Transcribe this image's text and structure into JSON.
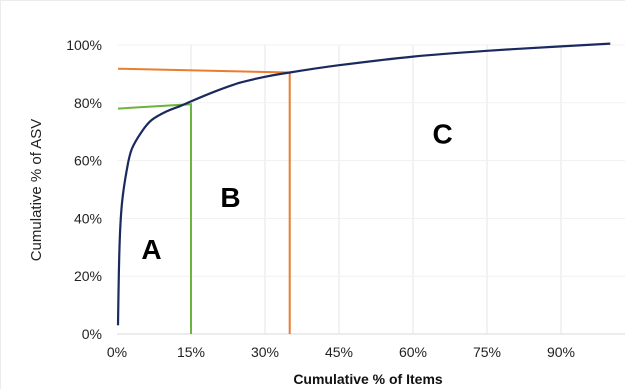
{
  "chart_data": {
    "type": "line",
    "xlabel": "Cumulative % of Items",
    "ylabel": "Cumulative % of ASV",
    "xlim": [
      0,
      100
    ],
    "ylim": [
      0,
      100
    ],
    "x_ticks": [
      0,
      15,
      30,
      45,
      60,
      75,
      90
    ],
    "x_tick_labels": [
      "0%",
      "15%",
      "30%",
      "45%",
      "60%",
      "75%",
      "90%"
    ],
    "y_ticks": [
      0,
      20,
      40,
      60,
      80,
      100
    ],
    "y_tick_labels": [
      "0%",
      "20%",
      "40%",
      "60%",
      "80%",
      "100%"
    ],
    "grid": "vertical",
    "series": [
      {
        "color": "#1b2a5e",
        "x": [
          0.2,
          0.5,
          1,
          2,
          3,
          5,
          7,
          10,
          13,
          15,
          20,
          25,
          30,
          35,
          45,
          60,
          75,
          90,
          100
        ],
        "y": [
          3,
          30,
          45,
          57,
          64,
          70,
          74,
          77,
          79,
          80.5,
          84,
          87,
          89,
          90.5,
          93,
          96,
          98,
          99.5,
          100.5
        ]
      }
    ],
    "reference_lines": [
      {
        "color": "#6cb33f",
        "points": [
          [
            0.2,
            78
          ],
          [
            15,
            79.5
          ],
          [
            15,
            0
          ]
        ]
      },
      {
        "color": "#e87e2f",
        "points": [
          [
            0.2,
            91.8
          ],
          [
            35,
            90.5
          ],
          [
            35,
            0
          ]
        ]
      }
    ],
    "annotations": [
      {
        "text": "A",
        "x": 7,
        "y": 26
      },
      {
        "text": "B",
        "x": 23,
        "y": 44
      },
      {
        "text": "C",
        "x": 66,
        "y": 66
      }
    ]
  }
}
